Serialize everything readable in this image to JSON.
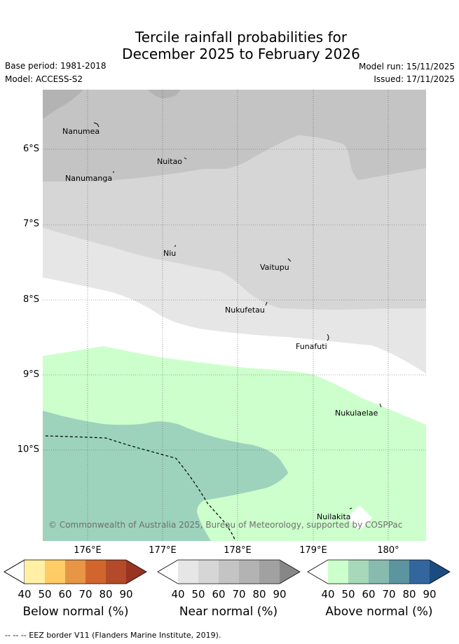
{
  "title": {
    "line1": "Tercile rainfall probabilities for",
    "line2": "December 2025 to February 2026"
  },
  "meta": {
    "base_period": "Base period: 1981-2018",
    "model": "Model: ACCESS-S2",
    "model_run": "Model run: 15/11/2025",
    "issued": "Issued: 17/11/2025"
  },
  "axes": {
    "y_labels": [
      "6°S",
      "7°S",
      "8°S",
      "9°S",
      "10°S"
    ],
    "x_labels": [
      "176°E",
      "177°E",
      "178°E",
      "179°E",
      "180°"
    ]
  },
  "islands": [
    {
      "name": "Nanumea"
    },
    {
      "name": "Nuitao"
    },
    {
      "name": "Nanumanga"
    },
    {
      "name": "Niu"
    },
    {
      "name": "Vaitupu"
    },
    {
      "name": "Nukufetau"
    },
    {
      "name": "Funafuti"
    },
    {
      "name": "Nukulaelae"
    },
    {
      "name": "Nuilakita"
    }
  ],
  "copyright": "© Commonwealth of Australia 2025, Bureau of Meteorology, supported by COSPPac",
  "colorbars": [
    {
      "title": "Below normal (%)",
      "ticks": [
        "40",
        "50",
        "60",
        "70",
        "80",
        "90"
      ],
      "colors": [
        "#ffffff",
        "#fff0a6",
        "#ffcc66",
        "#e69645",
        "#d0662e",
        "#b34a2a",
        "#993322"
      ]
    },
    {
      "title": "Near normal (%)",
      "ticks": [
        "40",
        "50",
        "60",
        "70",
        "80",
        "90"
      ],
      "colors": [
        "#ffffff",
        "#e6e6e6",
        "#d6d6d6",
        "#c4c4c4",
        "#b3b3b3",
        "#a1a1a1",
        "#878787"
      ]
    },
    {
      "title": "Above normal (%)",
      "ticks": [
        "40",
        "50",
        "60",
        "70",
        "80",
        "90"
      ],
      "colors": [
        "#ffffff",
        "#ccffcc",
        "#a6d8b9",
        "#87bbb0",
        "#5c94a0",
        "#33669c",
        "#1b4c80"
      ]
    }
  ],
  "legend_footnote": "--  --  -- EEZ border V11 (Flanders Marine Institute, 2019).",
  "map_colors": {
    "near_70": "#c4c4c4",
    "near_80": "#b3b3b3",
    "near_60": "#d6d6d6",
    "near_50": "#e6e6e6",
    "above_50": "#ccffcc",
    "above_60": "#9dd3bc",
    "grid": "#555555"
  }
}
